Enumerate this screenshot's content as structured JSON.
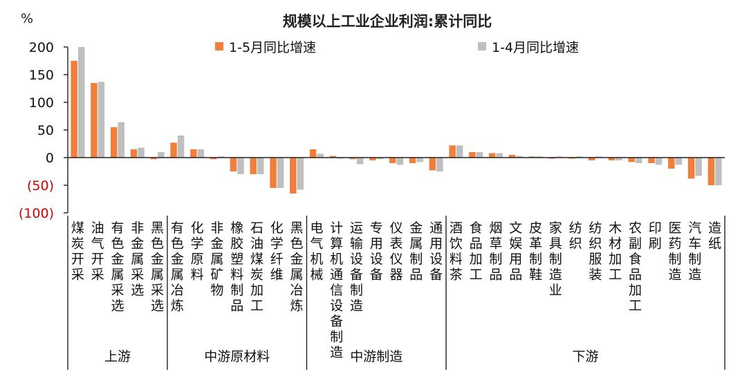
{
  "chart_data": {
    "type": "bar",
    "title": "规模以上工业企业利润:累计同比",
    "unit": "%",
    "ylim": [
      -100,
      200
    ],
    "y_ticks": [
      200,
      150,
      100,
      50,
      0,
      -50,
      -100
    ],
    "y_tick_labels": [
      "200",
      "150",
      "100",
      "50",
      "0",
      "(50)",
      "(100)"
    ],
    "negative_tick_color": "#d40000",
    "grid": false,
    "legend_position": "top",
    "categories": [
      "煤炭开采",
      "油气开采",
      "有色金属采选",
      "非金属采选",
      "黑色金属采选",
      "有色金属冶炼",
      "化学原料",
      "非金属矿物",
      "橡胶塑料制品",
      "石油煤炭加工",
      "化学纤维",
      "黑色金属冶炼",
      "电气机械",
      "计算机通信设备制造",
      "运输设备制造",
      "专用设备",
      "仪表仪器",
      "金属制品",
      "通用设备",
      "酒饮料茶",
      "食品加工",
      "烟草制品",
      "文娱用品",
      "皮革制鞋",
      "家具制造业",
      "纺织",
      "纺织服装",
      "木材加工",
      "农副食品加工",
      "印刷",
      "医药制造",
      "汽车制造",
      "造纸"
    ],
    "series": [
      {
        "name": "1-5月同比增速",
        "color": "#f07f3c",
        "values": [
          175,
          135,
          55,
          15,
          -3,
          27,
          15,
          -3,
          -25,
          -30,
          -55,
          -65,
          15,
          3,
          -3,
          -5,
          -10,
          -10,
          -23,
          22,
          10,
          8,
          5,
          2,
          -2,
          -2,
          -5,
          -5,
          -8,
          -10,
          -20,
          -38,
          -50
        ]
      },
      {
        "name": "1-4月同比增速",
        "color": "#bfbfbf",
        "values": [
          200,
          137,
          64,
          18,
          10,
          40,
          15,
          2,
          -30,
          -30,
          -55,
          -58,
          7,
          -2,
          -12,
          -3,
          -13,
          -8,
          -25,
          22,
          10,
          8,
          3,
          2,
          2,
          2,
          2,
          -5,
          -10,
          -13,
          -13,
          -33,
          -50
        ]
      }
    ],
    "groups": [
      {
        "label": "上游",
        "count": 5
      },
      {
        "label": "中游原材料",
        "count": 7
      },
      {
        "label": "中游制造",
        "count": 7
      },
      {
        "label": "下游",
        "count": 14
      }
    ]
  }
}
